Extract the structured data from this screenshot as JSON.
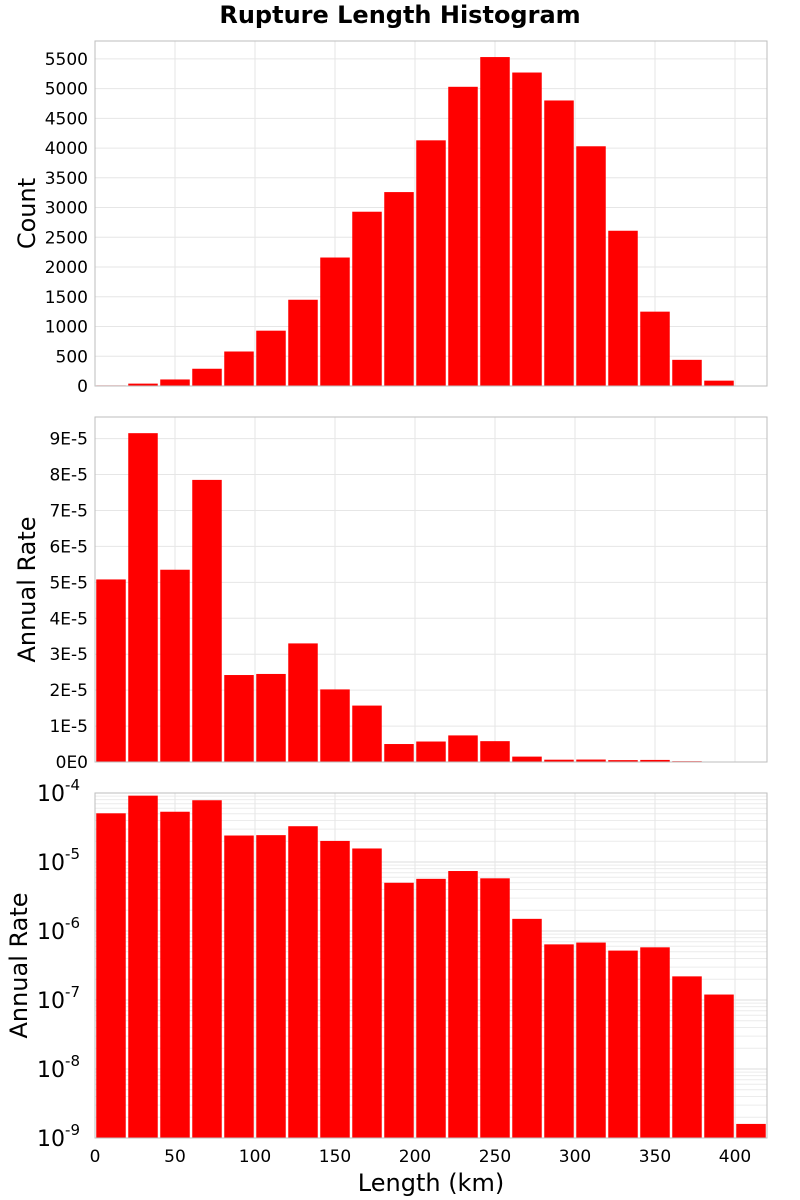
{
  "chart_data": [
    {
      "type": "bar",
      "title": "Rupture Length Histogram",
      "ylabel": "Count",
      "xlim": [
        0,
        420
      ],
      "ylim": [
        0,
        5800
      ],
      "yticks": [
        0,
        500,
        1000,
        1500,
        2000,
        2500,
        3000,
        3500,
        4000,
        4500,
        5000,
        5500
      ],
      "ytick_labels": [
        "0",
        "500",
        "1000",
        "1500",
        "2000",
        "2500",
        "3000",
        "3500",
        "4000",
        "4500",
        "5000",
        "5500"
      ],
      "grid": true,
      "bar_color": "#ff0000",
      "x": [
        10,
        30,
        50,
        70,
        90,
        110,
        130,
        150,
        170,
        190,
        210,
        230,
        250,
        270,
        290,
        310,
        330,
        350,
        370,
        390,
        410
      ],
      "values": [
        10,
        40,
        110,
        290,
        580,
        930,
        1450,
        2160,
        2930,
        3260,
        4130,
        5030,
        5530,
        5270,
        4800,
        4030,
        2610,
        1250,
        440,
        90,
        0
      ]
    },
    {
      "type": "bar",
      "ylabel": "Annual Rate",
      "xlim": [
        0,
        420
      ],
      "ylim": [
        0,
        9.6e-05
      ],
      "yticks": [
        0,
        1e-05,
        2e-05,
        3e-05,
        4e-05,
        5e-05,
        6e-05,
        7e-05,
        8e-05,
        9e-05
      ],
      "ytick_labels": [
        "0E0",
        "1E-5",
        "2E-5",
        "3E-5",
        "4E-5",
        "5E-5",
        "6E-5",
        "7E-5",
        "8E-5",
        "9E-5"
      ],
      "grid": true,
      "bar_color": "#ff0000",
      "x": [
        10,
        30,
        50,
        70,
        90,
        110,
        130,
        150,
        170,
        190,
        210,
        230,
        250,
        270,
        290,
        310,
        330,
        350,
        370,
        390,
        410
      ],
      "values": [
        5.08e-05,
        9.15e-05,
        5.35e-05,
        7.85e-05,
        2.42e-05,
        2.45e-05,
        3.3e-05,
        2.02e-05,
        1.57e-05,
        5e-06,
        5.7e-06,
        7.4e-06,
        5.8e-06,
        1.5e-06,
        6.4e-07,
        6.8e-07,
        5.2e-07,
        5.8e-07,
        2.2e-07,
        1.2e-07,
        1.6e-09
      ]
    },
    {
      "type": "bar",
      "ylabel": "Annual Rate",
      "xlabel": "Length (km)",
      "xlim": [
        0,
        420
      ],
      "xticks": [
        0,
        50,
        100,
        150,
        200,
        250,
        300,
        350,
        400
      ],
      "xtick_labels": [
        "0",
        "50",
        "100",
        "150",
        "200",
        "250",
        "300",
        "350",
        "400"
      ],
      "yscale": "log",
      "ylim": [
        1e-09,
        0.0001
      ],
      "ytick_labels": [
        {
          "base": "10",
          "exp": "-9"
        },
        {
          "base": "10",
          "exp": "-8"
        },
        {
          "base": "10",
          "exp": "-7"
        },
        {
          "base": "10",
          "exp": "-6"
        },
        {
          "base": "10",
          "exp": "-5"
        },
        {
          "base": "10",
          "exp": "-4"
        }
      ],
      "grid": true,
      "bar_color": "#ff0000",
      "x": [
        10,
        30,
        50,
        70,
        90,
        110,
        130,
        150,
        170,
        190,
        210,
        230,
        250,
        270,
        290,
        310,
        330,
        350,
        370,
        390,
        410
      ],
      "values": [
        5.08e-05,
        9.15e-05,
        5.35e-05,
        7.85e-05,
        2.42e-05,
        2.45e-05,
        3.3e-05,
        2.02e-05,
        1.57e-05,
        5e-06,
        5.7e-06,
        7.4e-06,
        5.8e-06,
        1.5e-06,
        6.4e-07,
        6.8e-07,
        5.2e-07,
        5.8e-07,
        2.2e-07,
        1.2e-07,
        1.6e-09
      ]
    }
  ]
}
